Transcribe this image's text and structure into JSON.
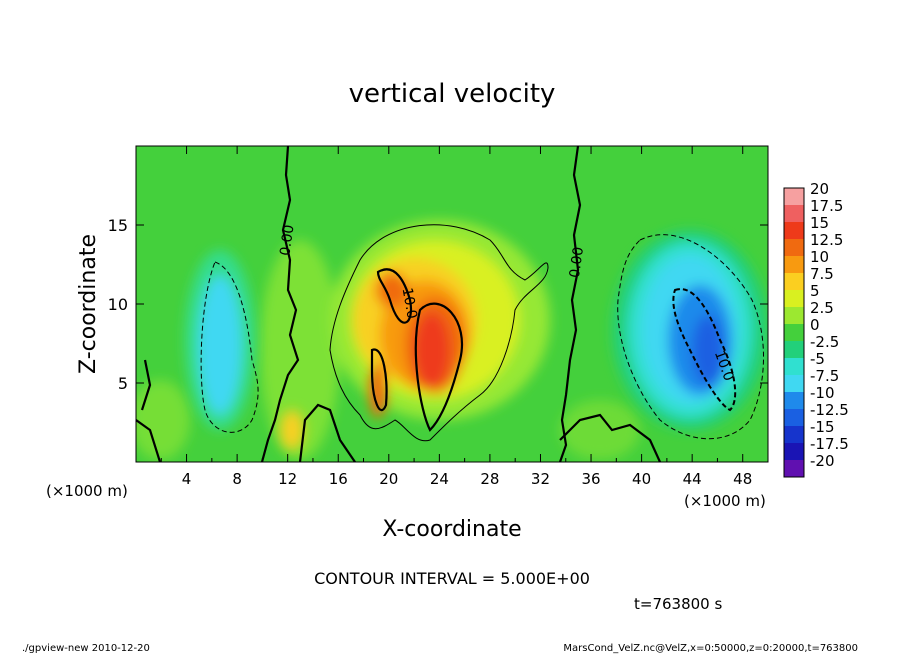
{
  "chart_data": {
    "type": "heatmap",
    "title": "vertical velocity",
    "xlabel": "X-coordinate",
    "ylabel": "Z-coordinate",
    "xlim": [
      0,
      50
    ],
    "ylim": [
      0,
      20
    ],
    "x_unit_left": "(×1000 m)",
    "x_unit_right": "(×1000 m)",
    "x_ticks": [
      4,
      8,
      12,
      16,
      20,
      24,
      28,
      32,
      36,
      40,
      44,
      48
    ],
    "x_tick_labels": [
      "4",
      "8",
      "12",
      "16",
      "20",
      "24",
      "28",
      "32",
      "36",
      "40",
      "44",
      "48"
    ],
    "y_ticks": [
      5,
      10,
      15
    ],
    "y_tick_labels": [
      "5",
      "10",
      "15"
    ],
    "contour_interval_text": "CONTOUR INTERVAL = 5.000E+00",
    "time_text": "t=763800 s",
    "contour_labels": [
      {
        "text": "0.00",
        "x": 12.3,
        "z": 14.0,
        "rotate": -82
      },
      {
        "text": "0.00",
        "x": 35.2,
        "z": 12.6,
        "rotate": -82
      },
      {
        "text": "10.0",
        "x": 21.3,
        "z": 10.0,
        "rotate": 80
      },
      {
        "text": "10.0",
        "x": 46.2,
        "z": 6.0,
        "rotate": 70
      }
    ],
    "colorbar": {
      "levels": [
        "20",
        "17.5",
        "15",
        "12.5",
        "10",
        "7.5",
        "5",
        "2.5",
        "0",
        "-2.5",
        "-5",
        "-7.5",
        "-10",
        "-12.5",
        "-15",
        "-17.5",
        "-20"
      ],
      "colors": [
        "#f6a0a0",
        "#ef6060",
        "#ee3a1a",
        "#f06a10",
        "#f89a10",
        "#fbcf20",
        "#d9f020",
        "#9ce830",
        "#44d03c",
        "#22d07a",
        "#30e0d0",
        "#40d8f2",
        "#1f8aeb",
        "#1a60e2",
        "#1634cc",
        "#1a14b4",
        "#6010b0"
      ]
    }
  },
  "footer": {
    "left": "./gpview-new  2010-12-20",
    "right": "MarsCond_VelZ.nc@VelZ,x=0:50000,z=0:20000,t=763800"
  },
  "colors": {
    "background_field": "#44d03c",
    "near_zero": "#96e834",
    "updraft_mid": "#f8d020",
    "updraft_core": "#ee3a1a",
    "downdraft_mid": "#40d8f2",
    "downdraft_core": "#1f8aeb"
  }
}
